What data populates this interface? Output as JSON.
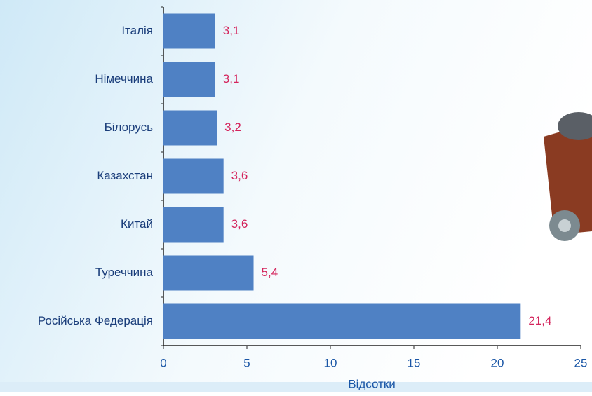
{
  "chart_data": {
    "type": "hbar",
    "categories": [
      "Італія",
      "Німеччина",
      "Білорусь",
      "Казахстан",
      "Китай",
      "Туреччина",
      "Російська Федерація"
    ],
    "values": [
      3.1,
      3.1,
      3.2,
      3.6,
      3.6,
      5.4,
      21.4
    ],
    "value_labels": [
      "3,1",
      "3,1",
      "3,2",
      "3,6",
      "3,6",
      "5,4",
      "21,4"
    ],
    "color": "#4f81c4",
    "xlabel": "Відсотки",
    "xlim": [
      0,
      25
    ],
    "xticks": [
      0,
      5,
      10,
      15,
      20,
      25
    ]
  }
}
